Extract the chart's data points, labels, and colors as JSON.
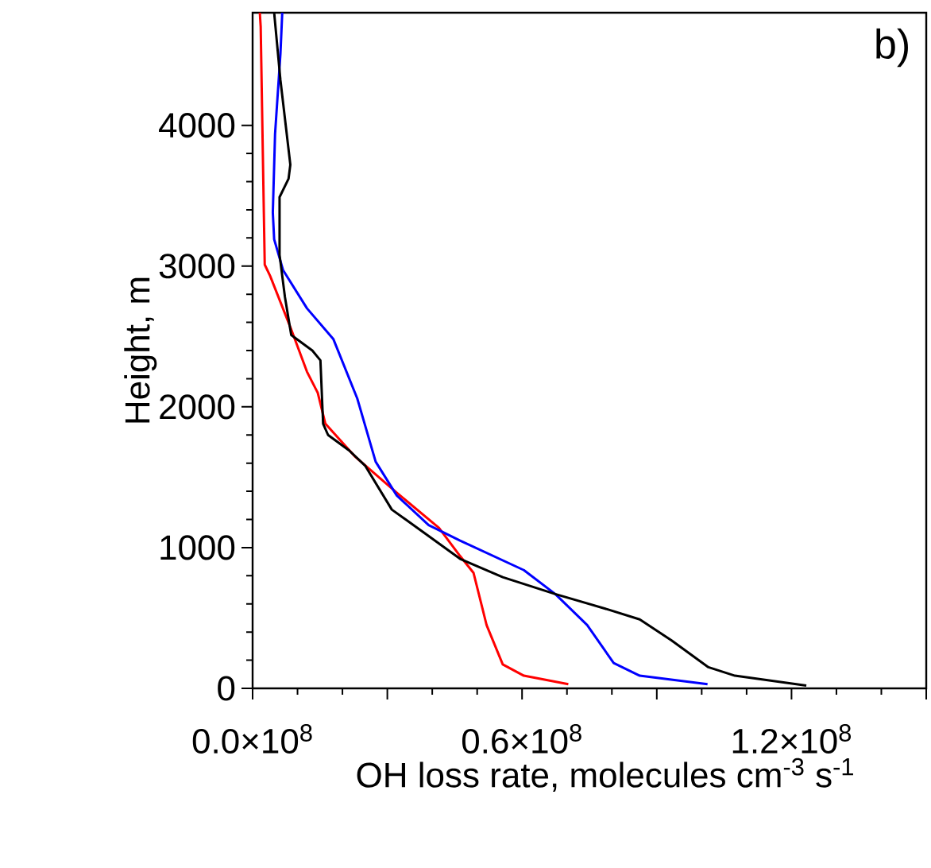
{
  "chart_data": {
    "type": "line",
    "xlabel": "OH loss rate, molecules cm$^{-3}$ s$^{-1}$",
    "ylabel": "Height, m",
    "annotations": [
      "b)"
    ],
    "xlim": [
      0,
      150000000
    ],
    "ylim": [
      0,
      4800
    ],
    "xticks": [
      {
        "value": 0,
        "label": "0.0×10$^{8}$"
      },
      {
        "value": 30000000,
        "label": null
      },
      {
        "value": 60000000,
        "label": "0.6×10$^{8}$"
      },
      {
        "value": 90000000,
        "label": null
      },
      {
        "value": 120000000,
        "label": "1.2×10$^{8}$"
      },
      {
        "value": 150000000,
        "label": null
      }
    ],
    "yticks": [
      0,
      1000,
      2000,
      3000,
      4000
    ],
    "grid": false,
    "marker": "none",
    "line_style": "solid",
    "series": [
      {
        "color": "#ff0000",
        "x": [
          70300000,
          60400000,
          55700000,
          52100000,
          49200000,
          46200000,
          41500000,
          32100000,
          22700000,
          16200000,
          14500000,
          12100000,
          8600000,
          3900000,
          2700000,
          2500000,
          2100000,
          1800000,
          1600000
        ],
        "values": [
          30,
          90,
          170,
          450,
          820,
          940,
          1140,
          1390,
          1650,
          1880,
          2100,
          2250,
          2550,
          2930,
          3010,
          3380,
          4130,
          4700,
          4800
        ]
      },
      {
        "color": "#0000ff",
        "x": [
          101300000,
          86200000,
          80400000,
          74500000,
          67400000,
          60400000,
          46200000,
          39200000,
          32100000,
          27400000,
          23300000,
          18000000,
          12100000,
          6800000,
          4800000,
          4500000,
          5000000,
          6200000,
          6600000
        ],
        "values": [
          30,
          90,
          180,
          450,
          670,
          840,
          1050,
          1160,
          1370,
          1610,
          2060,
          2480,
          2700,
          2970,
          3190,
          3380,
          3940,
          4510,
          4800
        ]
      },
      {
        "color": "#000000",
        "x": [
          123300000,
          107400000,
          101500000,
          93300000,
          86200000,
          79200000,
          67400000,
          55700000,
          46200000,
          38000000,
          31000000,
          25100000,
          21500000,
          16800000,
          15700000,
          15100000,
          13300000,
          8600000,
          7200000,
          6000000,
          6000000,
          8000000,
          8400000,
          6200000,
          4800000
        ],
        "values": [
          20,
          90,
          150,
          340,
          490,
          560,
          670,
          790,
          920,
          1110,
          1270,
          1580,
          1690,
          1800,
          1880,
          2330,
          2400,
          2510,
          2780,
          3080,
          3490,
          3620,
          3720,
          4320,
          4800
        ]
      }
    ]
  }
}
